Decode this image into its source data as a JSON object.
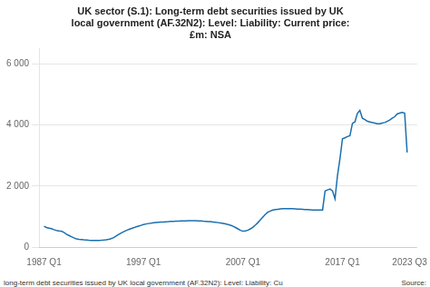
{
  "chart_data": {
    "type": "line",
    "title": "UK sector (S.1): Long-term debt securities issued by UK\nlocal government (AF.32N2): Level: Liability: Current price:\n£m: NSA",
    "annotations": [
      "long-term debt securities issued by UK local government (AF.32N2): Level: Liability: Cu",
      "Source:"
    ],
    "color": "#1a6faf",
    "grid": "y",
    "xlim": [
      1986.5,
      2024.5
    ],
    "xticks": [
      {
        "value": 1987.0,
        "label": "1987 Q1"
      },
      {
        "value": 1997.0,
        "label": "1997 Q1"
      },
      {
        "value": 2007.0,
        "label": "2007 Q1"
      },
      {
        "value": 2017.0,
        "label": "2017 Q1"
      },
      {
        "value": 2023.75,
        "label": "2023 Q3"
      }
    ],
    "ylim": [
      0,
      6500
    ],
    "yticks": [
      0,
      {
        "value": 2000,
        "label": "2 000"
      },
      {
        "value": 4000,
        "label": "4 000"
      },
      {
        "value": 6000,
        "label": "6 000"
      }
    ],
    "x": [
      1987,
      1987.25,
      1987.5,
      1987.75,
      1988,
      1988.25,
      1988.5,
      1988.75,
      1989,
      1989.25,
      1989.5,
      1989.75,
      1990,
      1990.25,
      1990.5,
      1990.75,
      1991,
      1991.25,
      1991.5,
      1991.75,
      1992,
      1992.25,
      1992.5,
      1992.75,
      1993,
      1993.25,
      1993.5,
      1993.75,
      1994,
      1994.25,
      1994.5,
      1994.75,
      1995,
      1995.25,
      1995.5,
      1995.75,
      1996,
      1996.25,
      1996.5,
      1996.75,
      1997,
      1997.25,
      1997.5,
      1997.75,
      1998,
      1998.25,
      1998.5,
      1998.75,
      1999,
      1999.25,
      1999.5,
      1999.75,
      2000,
      2000.25,
      2000.5,
      2000.75,
      2001,
      2001.25,
      2001.5,
      2001.75,
      2002,
      2002.25,
      2002.5,
      2002.75,
      2003,
      2003.25,
      2003.5,
      2003.75,
      2004,
      2004.25,
      2004.5,
      2004.75,
      2005,
      2005.25,
      2005.5,
      2005.75,
      2006,
      2006.25,
      2006.5,
      2006.75,
      2007,
      2007.25,
      2007.5,
      2007.75,
      2008,
      2008.25,
      2008.5,
      2008.75,
      2009,
      2009.25,
      2009.5,
      2009.75,
      2010,
      2010.25,
      2010.5,
      2010.75,
      2011,
      2011.25,
      2011.5,
      2011.75,
      2012,
      2012.25,
      2012.5,
      2012.75,
      2013,
      2013.25,
      2013.5,
      2013.75,
      2014,
      2014.25,
      2014.5,
      2014.75,
      2015,
      2015.25,
      2015.5,
      2015.75,
      2016,
      2016.25,
      2016.5,
      2016.75,
      2017,
      2017.25,
      2017.5,
      2017.75,
      2018,
      2018.25,
      2018.5,
      2018.75,
      2019,
      2019.25,
      2019.5,
      2019.75,
      2020,
      2020.25,
      2020.5,
      2020.75,
      2021,
      2021.25,
      2021.5,
      2021.75,
      2022,
      2022.25,
      2022.5,
      2022.75,
      2023,
      2023.25,
      2023.5
    ],
    "values": [
      680,
      640,
      620,
      600,
      570,
      545,
      530,
      520,
      480,
      420,
      380,
      340,
      300,
      270,
      255,
      245,
      235,
      228,
      222,
      218,
      215,
      215,
      218,
      222,
      228,
      238,
      255,
      275,
      310,
      360,
      410,
      460,
      500,
      540,
      575,
      605,
      630,
      660,
      685,
      710,
      735,
      755,
      770,
      780,
      795,
      805,
      812,
      818,
      822,
      828,
      832,
      838,
      842,
      845,
      848,
      852,
      855,
      858,
      860,
      862,
      862,
      862,
      858,
      852,
      845,
      840,
      835,
      830,
      820,
      810,
      800,
      788,
      775,
      758,
      738,
      715,
      680,
      640,
      595,
      548,
      518,
      530,
      555,
      595,
      650,
      720,
      800,
      890,
      980,
      1070,
      1140,
      1180,
      1210,
      1228,
      1238,
      1248,
      1255,
      1258,
      1258,
      1258,
      1255,
      1250,
      1245,
      1240,
      1235,
      1230,
      1225,
      1220,
      1215,
      1212,
      1210,
      1210,
      1215,
      1840,
      1870,
      1900,
      1840,
      1580,
      2350,
      2900,
      3550,
      3580,
      3620,
      3650,
      4050,
      4100,
      4380,
      4480,
      4220,
      4180,
      4120,
      4100,
      4080,
      4060,
      4040,
      4040,
      4060,
      4080,
      4120,
      4160,
      4220,
      4270,
      4360,
      4390,
      4410,
      4390,
      3100
    ]
  }
}
